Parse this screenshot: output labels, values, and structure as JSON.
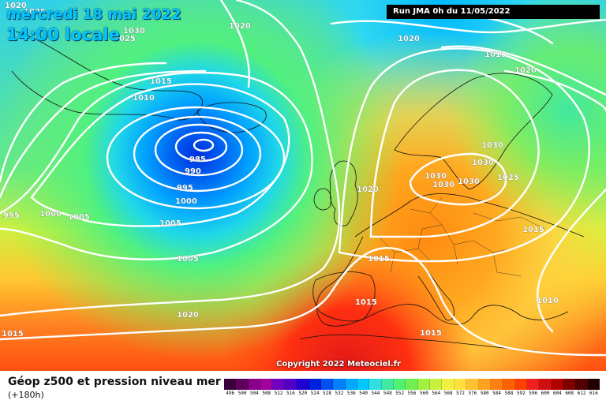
{
  "header": {
    "date": "mercredi 18 mai 2022",
    "time": "14:00 locale",
    "run": "Run JMA 0h du 11/05/2022"
  },
  "footer": {
    "title": "Géop z500 et pression niveau mer",
    "subtitle": "(+180h)",
    "copyright": "Copyright 2022 Meteociel.fr"
  },
  "legend": {
    "values": [
      "496",
      "500",
      "504",
      "508",
      "512",
      "516",
      "520",
      "524",
      "528",
      "532",
      "536",
      "540",
      "544",
      "548",
      "552",
      "556",
      "560",
      "564",
      "568",
      "572",
      "576",
      "580",
      "584",
      "588",
      "592",
      "596",
      "600",
      "604",
      "608",
      "612",
      "616"
    ],
    "colors": [
      "#3a003a",
      "#5c005c",
      "#8a008a",
      "#a000a0",
      "#7000c0",
      "#5000c8",
      "#2000d0",
      "#0020e0",
      "#0050f0",
      "#0080ff",
      "#00a8ff",
      "#00c8ff",
      "#30e0e0",
      "#40e8a0",
      "#50f070",
      "#70f050",
      "#a0f040",
      "#c8f040",
      "#f0f040",
      "#ffe040",
      "#ffc030",
      "#ffa020",
      "#ff8010",
      "#ff6000",
      "#ff4000",
      "#f02020",
      "#d01010",
      "#b00000",
      "#800000",
      "#500000",
      "#200000"
    ]
  },
  "isobar_labels": [
    "1020",
    "1025",
    "1030",
    "1025",
    "1020",
    "1020",
    "1015",
    "1020",
    "1015",
    "1010",
    "985",
    "990",
    "995",
    "1000",
    "995",
    "1000",
    "1005",
    "1005",
    "1005",
    "1020",
    "1030",
    "1030",
    "1030",
    "1030",
    "1025",
    "1030",
    "1015",
    "1015",
    "1015",
    "1010",
    "1020",
    "1015",
    "1015"
  ]
}
